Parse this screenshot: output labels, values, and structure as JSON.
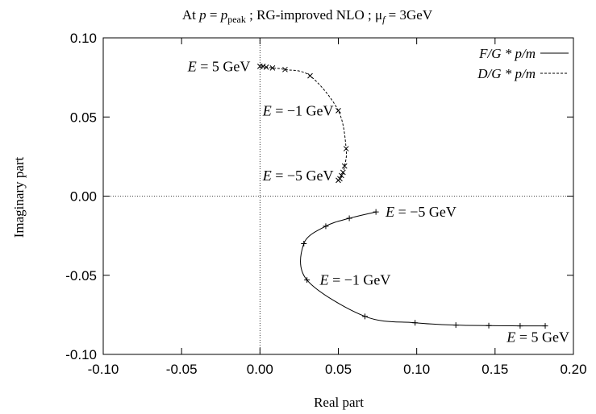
{
  "chart_data": {
    "type": "line",
    "title": "At p = p_peak ; RG-improved NLO ; μ_f = 3GeV",
    "title_parts": {
      "prefix": "At ",
      "p1": "p",
      "eq": " = ",
      "p2": "p",
      "sub_peak": "peak",
      "mid": " ; RG-improved NLO ; μ",
      "sub_f": "f",
      "suffix": " = 3GeV"
    },
    "xlabel": "Real part",
    "ylabel": "Imaginary part",
    "xlim": [
      -0.1,
      0.2
    ],
    "ylim": [
      -0.1,
      0.1
    ],
    "xticks": [
      "-0.10",
      "-0.05",
      "0.00",
      "0.05",
      "0.10",
      "0.15",
      "0.20"
    ],
    "yticks": [
      "0.10",
      "0.05",
      "0.00",
      "-0.05",
      "-0.10"
    ],
    "zero_lines": true,
    "grid": false,
    "legend_position": "top-right",
    "series": [
      {
        "name": "F/G * p/m",
        "line_style": "solid",
        "marker": "plus",
        "x": [
          0.074,
          0.057,
          0.042,
          0.028,
          0.03,
          0.067,
          0.099,
          0.125,
          0.146,
          0.166,
          0.182
        ],
        "y": [
          -0.01,
          -0.014,
          -0.019,
          -0.03,
          -0.053,
          -0.076,
          -0.08,
          -0.0815,
          -0.0818,
          -0.082,
          -0.082
        ]
      },
      {
        "name": "D/G * p/m",
        "line_style": "dashed",
        "marker": "cross",
        "x": [
          0.05,
          0.051,
          0.052,
          0.053,
          0.054,
          0.055,
          0.05,
          0.032,
          0.016,
          0.008,
          0.004,
          0.002,
          0.0
        ],
        "y": [
          0.01,
          0.011,
          0.013,
          0.015,
          0.019,
          0.03,
          0.054,
          0.076,
          0.08,
          0.081,
          0.0815,
          0.082,
          0.082
        ]
      }
    ],
    "annotations": [
      {
        "text": "E = 5 GeV",
        "x": 0.0,
        "y": 0.082
      },
      {
        "text": "E = −1 GeV",
        "x": 0.05,
        "y": 0.054
      },
      {
        "text": "E = −5 GeV",
        "x": 0.05,
        "y": 0.01
      },
      {
        "text": "E = −5 GeV",
        "x": 0.074,
        "y": -0.01
      },
      {
        "text": "E = −1 GeV",
        "x": 0.03,
        "y": -0.053
      },
      {
        "text": "E = 5 GeV",
        "x": 0.182,
        "y": -0.082
      }
    ]
  },
  "colors": {
    "line": "#000000",
    "background": "#ffffff"
  }
}
